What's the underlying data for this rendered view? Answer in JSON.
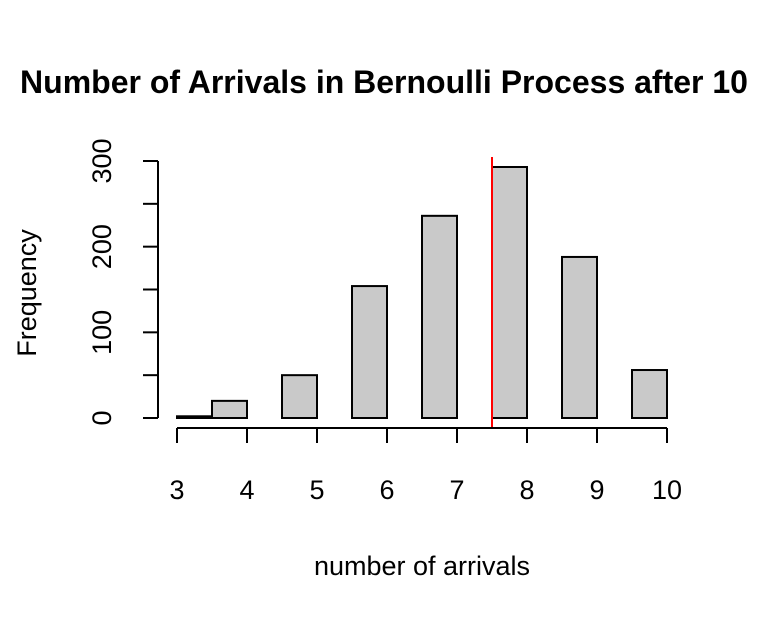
{
  "chart_data": {
    "type": "bar",
    "title": "Number of Arrivals in Bernoulli Process after 10",
    "xlabel": "number of arrivals",
    "ylabel": "Frequency",
    "x_ticks": [
      3,
      4,
      5,
      6,
      7,
      8,
      9,
      10
    ],
    "y_ticks": [
      0,
      100,
      200,
      300
    ],
    "xlim": [
      3,
      10
    ],
    "ylim": [
      0,
      300
    ],
    "bins": [
      {
        "x0": 3.0,
        "x1": 3.5,
        "value": 2
      },
      {
        "x0": 3.5,
        "x1": 4.0,
        "value": 20
      },
      {
        "x0": 4.5,
        "x1": 5.0,
        "value": 50
      },
      {
        "x0": 5.5,
        "x1": 6.0,
        "value": 154
      },
      {
        "x0": 6.5,
        "x1": 7.0,
        "value": 236
      },
      {
        "x0": 7.5,
        "x1": 8.0,
        "value": 293
      },
      {
        "x0": 8.5,
        "x1": 9.0,
        "value": 188
      },
      {
        "x0": 9.5,
        "x1": 10.0,
        "value": 56
      }
    ],
    "reference_line": {
      "x": 7.5,
      "color": "#ff0000"
    },
    "bar_fill": "#c9c9c9",
    "grid": false
  }
}
